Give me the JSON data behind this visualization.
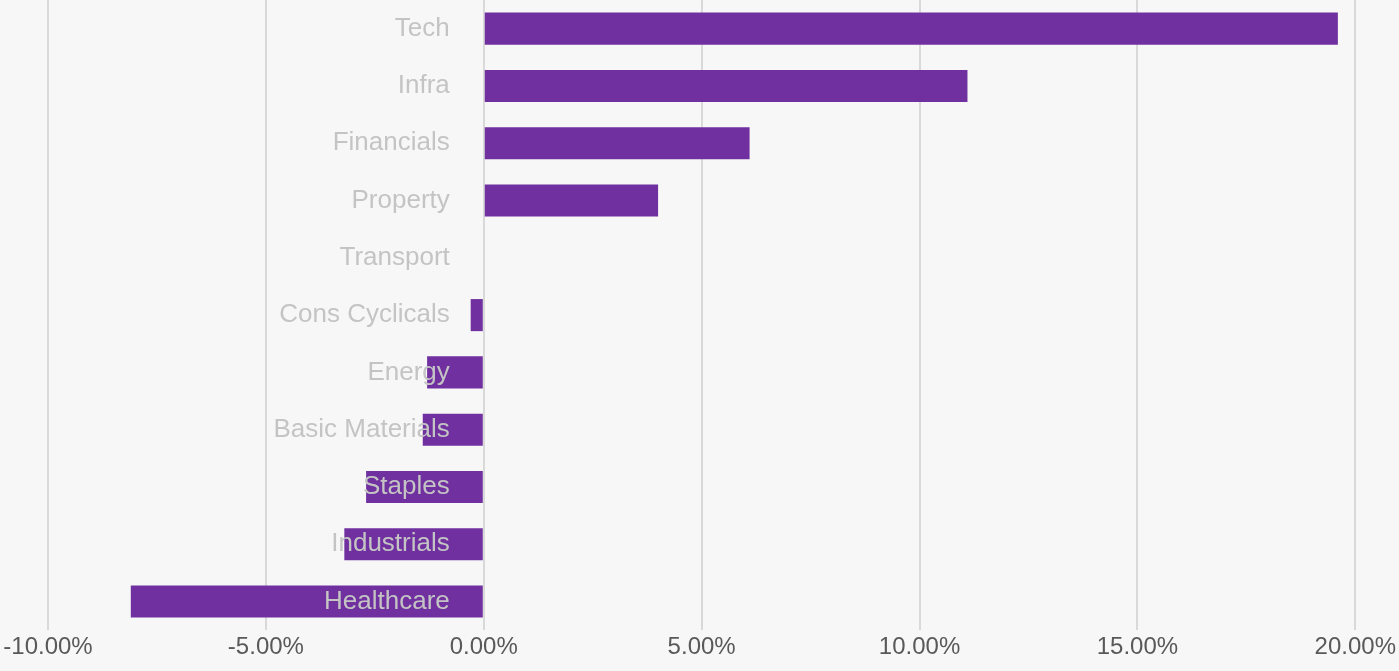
{
  "chart_data": {
    "type": "bar",
    "orientation": "horizontal",
    "categories": [
      "Tech",
      "Infra",
      "Financials",
      "Property",
      "Transport",
      "Cons Cyclicals",
      "Energy",
      "Basic Materials",
      "Staples",
      "Industrials",
      "Healthcare"
    ],
    "values": [
      19.6,
      11.1,
      6.1,
      4.0,
      0,
      -0.3,
      -1.3,
      -1.4,
      -2.7,
      -3.2,
      -8.1
    ],
    "color": "#7030a0",
    "xlim": [
      -10,
      20
    ],
    "xticks": [
      {
        "value": -10,
        "label": "-10.00%"
      },
      {
        "value": -5,
        "label": "-5.00%"
      },
      {
        "value": 0,
        "label": "0.00%"
      },
      {
        "value": 5,
        "label": "5.00%"
      },
      {
        "value": 10,
        "label": "10.00%"
      },
      {
        "value": 15,
        "label": "15.00%"
      },
      {
        "value": 20,
        "label": "20.00%"
      }
    ],
    "grid": "x",
    "legend": false
  }
}
